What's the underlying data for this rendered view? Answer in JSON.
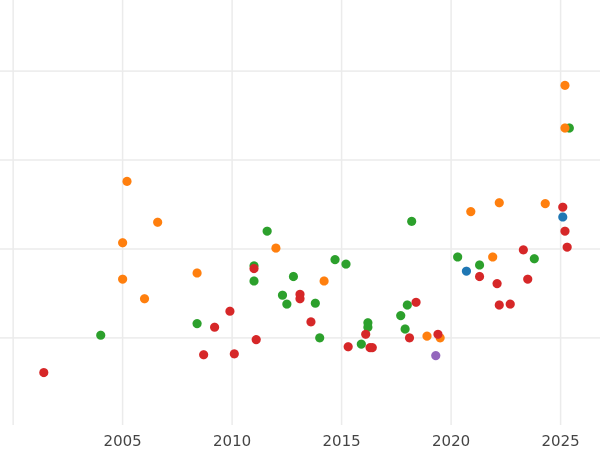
{
  "chart_data": {
    "type": "scatter",
    "title": "",
    "xlabel": "",
    "ylabel": "",
    "xlim": [
      1999.4,
      2026.8
    ],
    "ylim": [
      0.02,
      4.8
    ],
    "x_ticks": [
      2000,
      2005,
      2010,
      2015,
      2020,
      2025
    ],
    "x_tick_labels": [
      "",
      "2005",
      "2010",
      "2015",
      "2020",
      "2025"
    ],
    "y_gridlines": [
      1,
      2,
      3,
      4
    ],
    "grid": true,
    "legend": "none",
    "series": [
      {
        "color": "#2ca02c",
        "points": [
          [
            2004.0,
            1.03
          ],
          [
            2008.4,
            1.16
          ],
          [
            2011.0,
            1.81
          ],
          [
            2011.0,
            1.64
          ],
          [
            2011.6,
            2.2
          ],
          [
            2012.3,
            1.48
          ],
          [
            2012.5,
            1.38
          ],
          [
            2012.8,
            1.69
          ],
          [
            2013.8,
            1.39
          ],
          [
            2014.0,
            1.0
          ],
          [
            2014.7,
            1.88
          ],
          [
            2015.2,
            1.83
          ],
          [
            2015.9,
            0.93
          ],
          [
            2016.2,
            1.12
          ],
          [
            2016.2,
            1.17
          ],
          [
            2017.7,
            1.25
          ],
          [
            2017.9,
            1.1
          ],
          [
            2018.0,
            1.37
          ],
          [
            2018.2,
            2.31
          ],
          [
            2020.3,
            1.91
          ],
          [
            2021.3,
            1.82
          ],
          [
            2023.8,
            1.89
          ],
          [
            2025.4,
            3.36
          ]
        ]
      },
      {
        "color": "#ff7f0e",
        "points": [
          [
            2005.0,
            2.07
          ],
          [
            2005.0,
            1.66
          ],
          [
            2005.2,
            2.76
          ],
          [
            2006.0,
            1.44
          ],
          [
            2006.6,
            2.3
          ],
          [
            2008.4,
            1.73
          ],
          [
            2012.0,
            2.01
          ],
          [
            2014.2,
            1.64
          ],
          [
            2018.9,
            1.02
          ],
          [
            2019.5,
            1.0
          ],
          [
            2020.9,
            2.42
          ],
          [
            2021.9,
            1.91
          ],
          [
            2022.2,
            2.52
          ],
          [
            2024.3,
            2.51
          ],
          [
            2025.2,
            3.84
          ],
          [
            2025.2,
            3.36
          ]
        ]
      },
      {
        "color": "#d62728",
        "points": [
          [
            2001.4,
            0.61
          ],
          [
            2008.7,
            0.81
          ],
          [
            2009.2,
            1.12
          ],
          [
            2009.9,
            1.3
          ],
          [
            2010.1,
            0.82
          ],
          [
            2011.0,
            1.78
          ],
          [
            2011.1,
            0.98
          ],
          [
            2013.1,
            1.49
          ],
          [
            2013.1,
            1.44
          ],
          [
            2013.6,
            1.18
          ],
          [
            2015.3,
            0.9
          ],
          [
            2016.1,
            1.04
          ],
          [
            2016.3,
            0.89
          ],
          [
            2016.4,
            0.89
          ],
          [
            2018.1,
            1.0
          ],
          [
            2018.4,
            1.4
          ],
          [
            2019.4,
            1.04
          ],
          [
            2021.3,
            1.69
          ],
          [
            2022.1,
            1.61
          ],
          [
            2022.2,
            1.37
          ],
          [
            2022.7,
            1.38
          ],
          [
            2023.3,
            1.99
          ],
          [
            2023.5,
            1.66
          ],
          [
            2025.1,
            2.47
          ],
          [
            2025.2,
            2.2
          ],
          [
            2025.3,
            2.02
          ]
        ]
      },
      {
        "color": "#1f77b4",
        "points": [
          [
            2020.7,
            1.75
          ],
          [
            2025.1,
            2.36
          ]
        ]
      },
      {
        "color": "#9467bd",
        "points": [
          [
            2019.3,
            0.8
          ]
        ]
      }
    ]
  }
}
